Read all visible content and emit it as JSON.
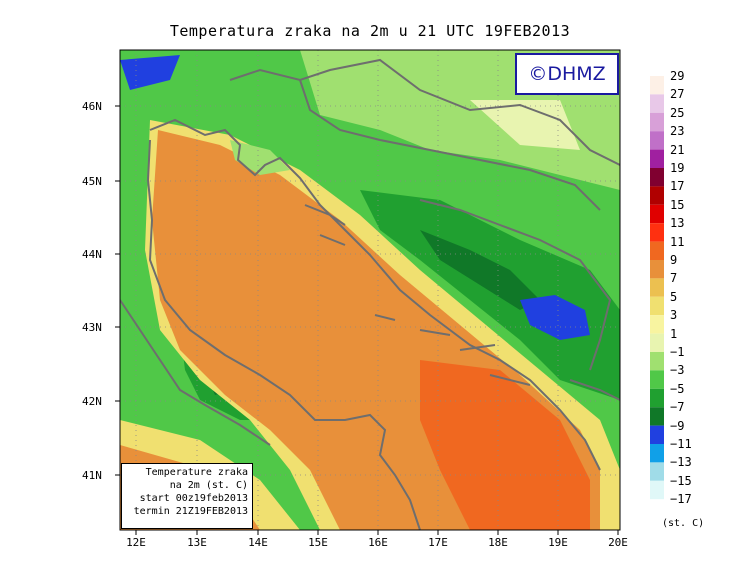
{
  "title": "Temperatura zraka na 2m u 21 UTC 19FEB2013",
  "logo": "©DHMZ",
  "info_box": {
    "line1": "Temperature zraka",
    "line2": "na 2m (st. C)",
    "line3": "start 00z19feb2013",
    "line4": "termin 21Z19FEB2013"
  },
  "lat_labels": [
    "46N",
    "45N",
    "44N",
    "43N",
    "42N",
    "41N"
  ],
  "lon_labels": [
    "12E",
    "13E",
    "14E",
    "15E",
    "16E",
    "17E",
    "18E",
    "19E",
    "20E"
  ],
  "legend": {
    "labels": [
      "29",
      "27",
      "25",
      "23",
      "21",
      "19",
      "17",
      "15",
      "13",
      "11",
      "9",
      "7",
      "5",
      "3",
      "1",
      "−1",
      "−3",
      "−5",
      "−7",
      "−9",
      "−11",
      "−13",
      "−15",
      "−17"
    ],
    "unit": "(st. C)",
    "colors": [
      "#fdf0e6",
      "#e8c8e8",
      "#d8a0d8",
      "#c070c8",
      "#a020a0",
      "#800030",
      "#b00000",
      "#e00000",
      "#ff3010",
      "#f06820",
      "#e8903a",
      "#ecc050",
      "#f0e070",
      "#f8f4a0",
      "#e8f4b0",
      "#a0e070",
      "#50c848",
      "#20a030",
      "#107828",
      "#2040e0",
      "#10a0e8",
      "#a0dce8",
      "#e0f8f8"
    ]
  },
  "map_colors": {
    "sea": "#e8903a",
    "sea_warm": "#f06820",
    "coast": "#f0e070",
    "land_light": "#a0e070",
    "land_green": "#50c848",
    "land_dark": "#20a030",
    "land_darker": "#107828",
    "cold": "#2040e0",
    "pale": "#e8f4b0",
    "border": "#6e6e6e"
  }
}
